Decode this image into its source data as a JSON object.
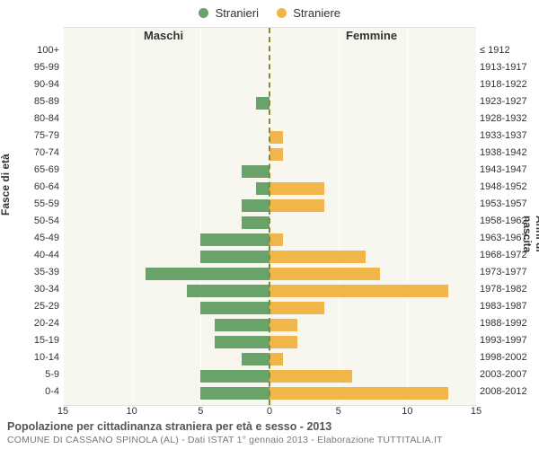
{
  "legend": {
    "male": {
      "label": "Stranieri",
      "color": "#6aa36a"
    },
    "female": {
      "label": "Straniere",
      "color": "#f0b64a"
    }
  },
  "headers": {
    "male": "Maschi",
    "female": "Femmine"
  },
  "axis": {
    "left_title": "Fasce di età",
    "right_title": "Anni di nascita",
    "xlim": 15,
    "xticks": [
      15,
      10,
      5,
      0,
      5,
      10,
      15
    ]
  },
  "colors": {
    "male_bar": "#6aa36a",
    "female_bar": "#f0b64a",
    "plot_bg": "#f7f7f0",
    "zero_line": "#888833"
  },
  "rows": [
    {
      "age": "100+",
      "year": "≤ 1912",
      "m": 0,
      "f": 0
    },
    {
      "age": "95-99",
      "year": "1913-1917",
      "m": 0,
      "f": 0
    },
    {
      "age": "90-94",
      "year": "1918-1922",
      "m": 0,
      "f": 0
    },
    {
      "age": "85-89",
      "year": "1923-1927",
      "m": 1,
      "f": 0
    },
    {
      "age": "80-84",
      "year": "1928-1932",
      "m": 0,
      "f": 0
    },
    {
      "age": "75-79",
      "year": "1933-1937",
      "m": 0,
      "f": 1
    },
    {
      "age": "70-74",
      "year": "1938-1942",
      "m": 0,
      "f": 1
    },
    {
      "age": "65-69",
      "year": "1943-1947",
      "m": 2,
      "f": 0
    },
    {
      "age": "60-64",
      "year": "1948-1952",
      "m": 1,
      "f": 4
    },
    {
      "age": "55-59",
      "year": "1953-1957",
      "m": 2,
      "f": 4
    },
    {
      "age": "50-54",
      "year": "1958-1962",
      "m": 2,
      "f": 0
    },
    {
      "age": "45-49",
      "year": "1963-1967",
      "m": 5,
      "f": 1
    },
    {
      "age": "40-44",
      "year": "1968-1972",
      "m": 5,
      "f": 7
    },
    {
      "age": "35-39",
      "year": "1973-1977",
      "m": 9,
      "f": 8
    },
    {
      "age": "30-34",
      "year": "1978-1982",
      "m": 6,
      "f": 13
    },
    {
      "age": "25-29",
      "year": "1983-1987",
      "m": 5,
      "f": 4
    },
    {
      "age": "20-24",
      "year": "1988-1992",
      "m": 4,
      "f": 2
    },
    {
      "age": "15-19",
      "year": "1993-1997",
      "m": 4,
      "f": 2
    },
    {
      "age": "10-14",
      "year": "1998-2002",
      "m": 2,
      "f": 1
    },
    {
      "age": "5-9",
      "year": "2003-2007",
      "m": 5,
      "f": 6
    },
    {
      "age": "0-4",
      "year": "2008-2012",
      "m": 5,
      "f": 13
    }
  ],
  "footer": {
    "title": "Popolazione per cittadinanza straniera per età e sesso - 2013",
    "subtitle": "COMUNE DI CASSANO SPINOLA (AL) - Dati ISTAT 1° gennaio 2013 - Elaborazione TUTTITALIA.IT"
  }
}
